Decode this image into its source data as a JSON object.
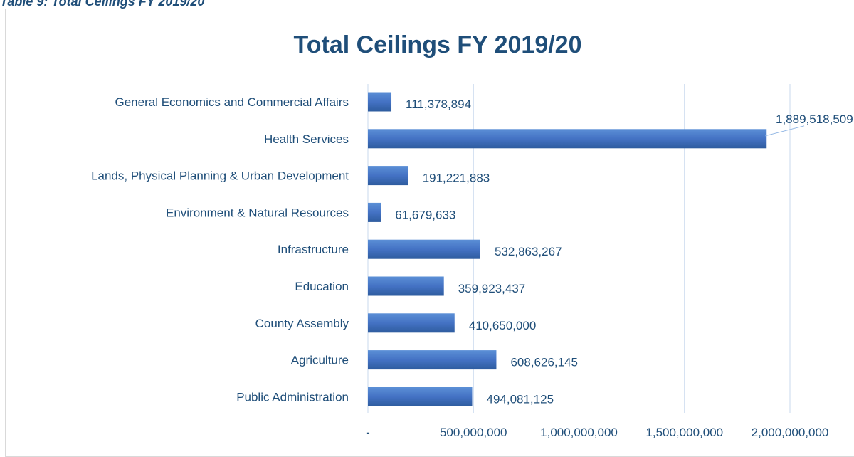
{
  "caption": "Table 9: Total Ceilings FY 2019/20",
  "colors": {
    "bar": "#4472c4",
    "bar_dark": "#2e5c9e",
    "text": "#1f4e79",
    "grid": "#c9d9ee",
    "leader": "#8eb4e3"
  },
  "chart_data": {
    "type": "bar",
    "orientation": "horizontal",
    "title": "Total Ceilings FY 2019/20",
    "categories": [
      "General Economics and Commercial Affairs",
      "Health Services",
      "Lands, Physical Planning & Urban Development",
      "Environment & Natural Resources",
      "Infrastructure",
      "Education",
      "County Assembly",
      "Agriculture",
      "Public Administration"
    ],
    "values": [
      111378894,
      1889518509,
      191221883,
      61679633,
      532863267,
      359923437,
      410650000,
      608626145,
      494081125
    ],
    "value_labels": [
      "111,378,894",
      "1,889,518,509",
      "191,221,883",
      "61,679,633",
      "532,863,267",
      "359,923,437",
      "410,650,000",
      "608,626,145",
      "494,081,125"
    ],
    "xlim": [
      0,
      2000000000
    ],
    "xticks": [
      0,
      500000000,
      1000000000,
      1500000000,
      2000000000
    ],
    "xtick_labels": [
      "-",
      "500,000,000",
      "1,000,000,000",
      "1,500,000,000",
      "2,000,000,000"
    ],
    "grid": true,
    "legend": false
  }
}
